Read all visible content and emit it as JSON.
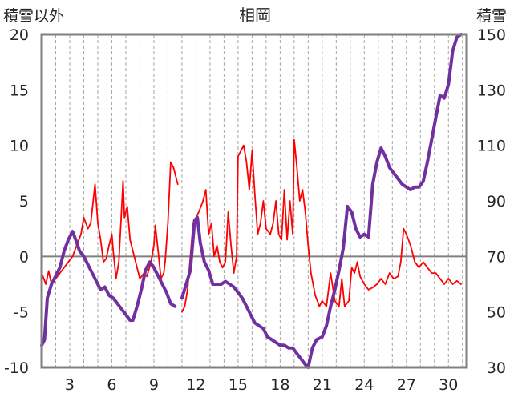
{
  "chart_data": {
    "type": "line",
    "title": "相岡",
    "y_left_label": "積雪以外",
    "y_right_label": "積雪",
    "y_left_lim": [
      -10,
      20
    ],
    "y_left_ticks": [
      20,
      15,
      10,
      5,
      0,
      -5,
      -10
    ],
    "y_left_tick_labels": [
      "20",
      "15",
      "10",
      "5",
      "0",
      "-5",
      "-10"
    ],
    "y_right_lim": [
      30,
      150
    ],
    "y_right_ticks": [
      150,
      130,
      110,
      90,
      70,
      50,
      30
    ],
    "y_right_tick_labels": [
      "150",
      "130",
      "110",
      "90",
      "70",
      "50",
      "30"
    ],
    "x_lim": [
      1,
      31.3
    ],
    "x_ticks": [
      3,
      6,
      9,
      12,
      15,
      18,
      21,
      24,
      27,
      30
    ],
    "x_tick_labels": [
      "3",
      "6",
      "9",
      "12",
      "15",
      "18",
      "21",
      "24",
      "27",
      "30"
    ],
    "grid_vertical_dashed": true,
    "series": [
      {
        "color": "#ff0000",
        "axis": "left",
        "segments": [
          [
            [
              1.0,
              -1.5
            ],
            [
              1.3,
              -2.5
            ],
            [
              1.5,
              -1.3
            ],
            [
              1.7,
              -2.5
            ],
            [
              2.0,
              -2.0
            ],
            [
              2.3,
              -1.5
            ],
            [
              2.6,
              -1.0
            ],
            [
              2.9,
              -0.5
            ],
            [
              3.2,
              0.0
            ],
            [
              3.5,
              1.0
            ],
            [
              3.8,
              2.0
            ],
            [
              4.0,
              3.5
            ],
            [
              4.3,
              2.5
            ],
            [
              4.5,
              3.0
            ],
            [
              4.8,
              6.5
            ],
            [
              5.0,
              3.0
            ],
            [
              5.2,
              1.5
            ],
            [
              5.4,
              -0.5
            ],
            [
              5.6,
              -0.2
            ],
            [
              5.8,
              1.0
            ],
            [
              6.0,
              2.0
            ],
            [
              6.1,
              0.5
            ],
            [
              6.3,
              -2.0
            ],
            [
              6.5,
              -0.5
            ],
            [
              6.8,
              6.8
            ],
            [
              6.9,
              3.5
            ],
            [
              7.1,
              4.5
            ],
            [
              7.3,
              1.5
            ],
            [
              7.5,
              0.5
            ],
            [
              7.8,
              -1.0
            ],
            [
              8.0,
              -2.0
            ],
            [
              8.3,
              -1.5
            ],
            [
              8.5,
              -1.8
            ],
            [
              8.8,
              -0.5
            ],
            [
              9.0,
              1.0
            ],
            [
              9.1,
              2.8
            ],
            [
              9.3,
              0.5
            ],
            [
              9.5,
              -2.0
            ],
            [
              9.7,
              -1.5
            ],
            [
              9.8,
              -0.5
            ],
            [
              10.0,
              3.0
            ],
            [
              10.2,
              8.5
            ],
            [
              10.4,
              8.0
            ],
            [
              10.6,
              7.0
            ],
            [
              10.7,
              6.5
            ]
          ],
          [
            [
              11.0,
              -5.0
            ],
            [
              11.2,
              -4.5
            ],
            [
              11.4,
              -3.0
            ],
            [
              11.6,
              0.0
            ],
            [
              11.8,
              3.0
            ],
            [
              12.0,
              3.5
            ],
            [
              12.2,
              4.0
            ],
            [
              12.5,
              5.0
            ],
            [
              12.7,
              6.0
            ],
            [
              12.9,
              2.0
            ],
            [
              13.1,
              3.0
            ],
            [
              13.3,
              0.0
            ],
            [
              13.5,
              1.0
            ],
            [
              13.7,
              -0.5
            ],
            [
              13.9,
              -1.0
            ],
            [
              14.1,
              -0.5
            ],
            [
              14.3,
              4.0
            ],
            [
              14.5,
              1.0
            ],
            [
              14.7,
              -1.5
            ],
            [
              14.9,
              0.0
            ],
            [
              15.0,
              9.0
            ],
            [
              15.2,
              9.5
            ],
            [
              15.4,
              10.0
            ],
            [
              15.6,
              8.5
            ],
            [
              15.8,
              6.0
            ],
            [
              16.0,
              9.5
            ],
            [
              16.2,
              5.5
            ],
            [
              16.4,
              2.0
            ],
            [
              16.6,
              3.0
            ],
            [
              16.8,
              5.0
            ],
            [
              17.0,
              2.5
            ],
            [
              17.3,
              2.0
            ],
            [
              17.5,
              3.0
            ],
            [
              17.7,
              5.0
            ],
            [
              17.9,
              2.0
            ],
            [
              18.1,
              1.5
            ],
            [
              18.3,
              6.0
            ],
            [
              18.5,
              1.5
            ],
            [
              18.7,
              5.0
            ],
            [
              18.9,
              2.0
            ],
            [
              19.0,
              10.5
            ],
            [
              19.2,
              8.0
            ],
            [
              19.4,
              5.0
            ],
            [
              19.6,
              6.0
            ],
            [
              19.8,
              4.0
            ],
            [
              20.0,
              1.0
            ],
            [
              20.2,
              -1.5
            ],
            [
              20.5,
              -3.5
            ],
            [
              20.8,
              -4.5
            ],
            [
              21.0,
              -4.0
            ],
            [
              21.3,
              -4.5
            ],
            [
              21.6,
              -1.5
            ],
            [
              21.9,
              -4.0
            ],
            [
              22.2,
              -4.5
            ],
            [
              22.4,
              -2.0
            ],
            [
              22.6,
              -4.5
            ],
            [
              22.9,
              -4.0
            ],
            [
              23.1,
              -1.0
            ],
            [
              23.3,
              -1.5
            ],
            [
              23.5,
              -0.5
            ],
            [
              23.7,
              -1.8
            ],
            [
              24.0,
              -2.5
            ],
            [
              24.3,
              -3.0
            ],
            [
              24.6,
              -2.8
            ],
            [
              24.9,
              -2.5
            ],
            [
              25.2,
              -2.0
            ],
            [
              25.5,
              -2.5
            ],
            [
              25.8,
              -1.5
            ],
            [
              26.1,
              -2.0
            ],
            [
              26.4,
              -1.8
            ],
            [
              26.6,
              -0.5
            ],
            [
              26.8,
              2.5
            ],
            [
              27.0,
              2.0
            ],
            [
              27.3,
              1.0
            ],
            [
              27.6,
              -0.5
            ],
            [
              27.9,
              -1.0
            ],
            [
              28.2,
              -0.5
            ],
            [
              28.5,
              -1.0
            ],
            [
              28.8,
              -1.5
            ],
            [
              29.1,
              -1.5
            ],
            [
              29.4,
              -2.0
            ],
            [
              29.7,
              -2.5
            ],
            [
              30.0,
              -2.0
            ],
            [
              30.3,
              -2.5
            ],
            [
              30.6,
              -2.2
            ],
            [
              30.9,
              -2.5
            ]
          ]
        ]
      },
      {
        "color": "#7030a0",
        "axis": "right",
        "segments": [
          [
            [
              1.0,
              38
            ],
            [
              1.2,
              40
            ],
            [
              1.4,
              55
            ],
            [
              1.7,
              60
            ],
            [
              2.0,
              63
            ],
            [
              2.3,
              66
            ],
            [
              2.6,
              72
            ],
            [
              2.9,
              76
            ],
            [
              3.2,
              79
            ],
            [
              3.5,
              75
            ],
            [
              3.7,
              72
            ],
            [
              4.0,
              70
            ],
            [
              4.3,
              67
            ],
            [
              4.6,
              64
            ],
            [
              4.9,
              61
            ],
            [
              5.2,
              58
            ],
            [
              5.5,
              59
            ],
            [
              5.8,
              56
            ],
            [
              6.1,
              55
            ],
            [
              6.4,
              53
            ],
            [
              6.7,
              51
            ],
            [
              7.0,
              49
            ],
            [
              7.3,
              47
            ],
            [
              7.5,
              47
            ],
            [
              7.8,
              52
            ],
            [
              8.1,
              58
            ],
            [
              8.4,
              65
            ],
            [
              8.7,
              68
            ],
            [
              9.0,
              66
            ],
            [
              9.3,
              63
            ],
            [
              9.6,
              60
            ],
            [
              9.9,
              57
            ],
            [
              10.2,
              53
            ],
            [
              10.5,
              52
            ]
          ],
          [
            [
              11.0,
              55
            ],
            [
              11.3,
              60
            ],
            [
              11.6,
              65
            ],
            [
              11.9,
              83
            ],
            [
              12.1,
              84
            ],
            [
              12.3,
              75
            ],
            [
              12.6,
              68
            ],
            [
              12.9,
              65
            ],
            [
              13.2,
              60
            ],
            [
              13.5,
              60
            ],
            [
              13.8,
              60
            ],
            [
              14.1,
              61
            ],
            [
              14.4,
              60
            ],
            [
              14.7,
              59
            ],
            [
              15.0,
              57
            ],
            [
              15.3,
              55
            ],
            [
              15.6,
              52
            ],
            [
              15.9,
              49
            ],
            [
              16.2,
              46
            ],
            [
              16.5,
              45
            ],
            [
              16.8,
              44
            ],
            [
              17.1,
              41
            ],
            [
              17.4,
              40
            ],
            [
              17.7,
              39
            ],
            [
              18.0,
              38
            ],
            [
              18.3,
              38
            ],
            [
              18.6,
              37
            ],
            [
              18.9,
              37
            ],
            [
              19.2,
              35
            ],
            [
              19.5,
              33
            ],
            [
              19.8,
              31
            ],
            [
              20.0,
              30
            ],
            [
              20.3,
              37
            ],
            [
              20.6,
              40
            ],
            [
              21.0,
              41
            ],
            [
              21.3,
              45
            ],
            [
              21.6,
              52
            ],
            [
              21.9,
              58
            ],
            [
              22.2,
              65
            ],
            [
              22.5,
              73
            ],
            [
              22.8,
              88
            ],
            [
              23.1,
              86
            ],
            [
              23.4,
              80
            ],
            [
              23.7,
              77
            ],
            [
              24.0,
              78
            ],
            [
              24.3,
              77
            ],
            [
              24.6,
              96
            ],
            [
              24.9,
              104
            ],
            [
              25.2,
              109
            ],
            [
              25.5,
              106
            ],
            [
              25.8,
              102
            ],
            [
              26.1,
              100
            ],
            [
              26.4,
              98
            ],
            [
              26.7,
              96
            ],
            [
              27.0,
              95
            ],
            [
              27.3,
              94
            ],
            [
              27.6,
              95
            ],
            [
              27.9,
              95
            ],
            [
              28.2,
              97
            ],
            [
              28.5,
              104
            ],
            [
              28.8,
              112
            ],
            [
              29.1,
              120
            ],
            [
              29.4,
              128
            ],
            [
              29.7,
              127
            ],
            [
              30.0,
              132
            ],
            [
              30.3,
              144
            ],
            [
              30.6,
              149
            ],
            [
              30.9,
              150
            ]
          ]
        ]
      }
    ]
  }
}
